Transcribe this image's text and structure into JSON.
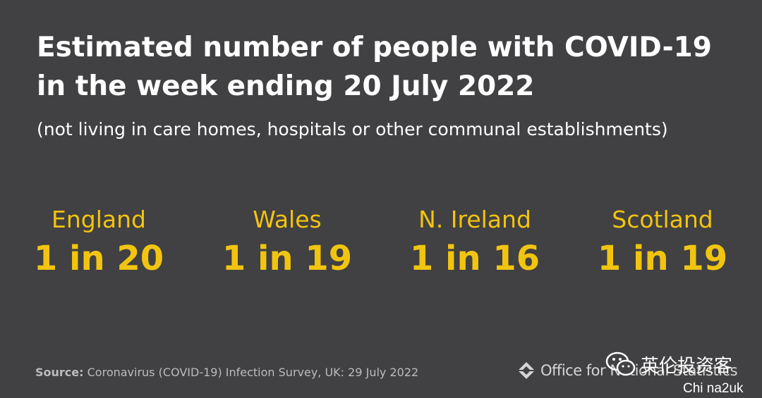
{
  "header": {
    "title": "Estimated number of people with COVID-19 in the week ending 20 July 2022",
    "subtitle": "(not living in care homes, hospitals or other communal establishments)"
  },
  "stats": [
    {
      "region": "England",
      "value": "1 in 20"
    },
    {
      "region": "Wales",
      "value": "1 in 19"
    },
    {
      "region": "N. Ireland",
      "value": "1 in 16"
    },
    {
      "region": "Scotland",
      "value": "1 in 19"
    }
  ],
  "footer": {
    "source_label": "Source:",
    "source_text": "Coronavirus (COVID-19) Infection Survey, UK: 29 July 2022",
    "logo_text": "Office for National Statistics"
  },
  "watermark": {
    "text": "英伦投资客",
    "caption": "Chi na2uk"
  },
  "colors": {
    "background": "#414042",
    "title": "#ffffff",
    "accent": "#f1c40f",
    "source": "#bcbcbc"
  },
  "icons": {
    "logo": "ons-logo-icon",
    "watermark": "wechat-icon"
  }
}
